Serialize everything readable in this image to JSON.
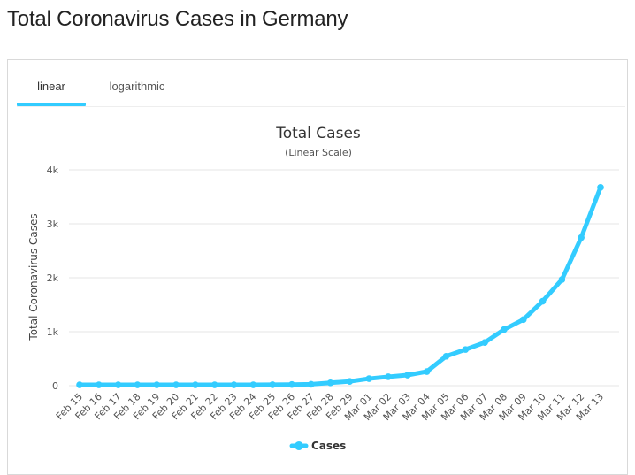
{
  "page": {
    "title": "Total Coronavirus Cases in Germany"
  },
  "tabs": [
    {
      "label": "linear",
      "active": true
    },
    {
      "label": "logarithmic",
      "active": false
    }
  ],
  "colors": {
    "accent": "#33ccff",
    "series": "#33ccff",
    "gridline": "#e6e6e6"
  },
  "chart_data": {
    "type": "line",
    "title": "Total Cases",
    "subtitle": "(Linear Scale)",
    "xlabel": "",
    "ylabel": "Total Coronavirus Cases",
    "ylim": [
      0,
      4000
    ],
    "yticks": [
      0,
      1000,
      2000,
      3000,
      4000
    ],
    "ytick_labels": [
      "0",
      "1k",
      "2k",
      "3k",
      "4k"
    ],
    "grid": true,
    "legend_position": "bottom-center",
    "categories": [
      "Feb 15",
      "Feb 16",
      "Feb 17",
      "Feb 18",
      "Feb 19",
      "Feb 20",
      "Feb 21",
      "Feb 22",
      "Feb 23",
      "Feb 24",
      "Feb 25",
      "Feb 26",
      "Feb 27",
      "Feb 28",
      "Feb 29",
      "Mar 01",
      "Mar 02",
      "Mar 03",
      "Mar 04",
      "Mar 05",
      "Mar 06",
      "Mar 07",
      "Mar 08",
      "Mar 09",
      "Mar 10",
      "Mar 11",
      "Mar 12",
      "Mar 13"
    ],
    "series": [
      {
        "name": "Cases",
        "color": "#33ccff",
        "values": [
          16,
          16,
          16,
          16,
          16,
          16,
          16,
          16,
          16,
          16,
          18,
          21,
          26,
          53,
          79,
          130,
          165,
          196,
          262,
          545,
          670,
          800,
          1040,
          1224,
          1565,
          1966,
          2745,
          3675
        ]
      }
    ]
  }
}
